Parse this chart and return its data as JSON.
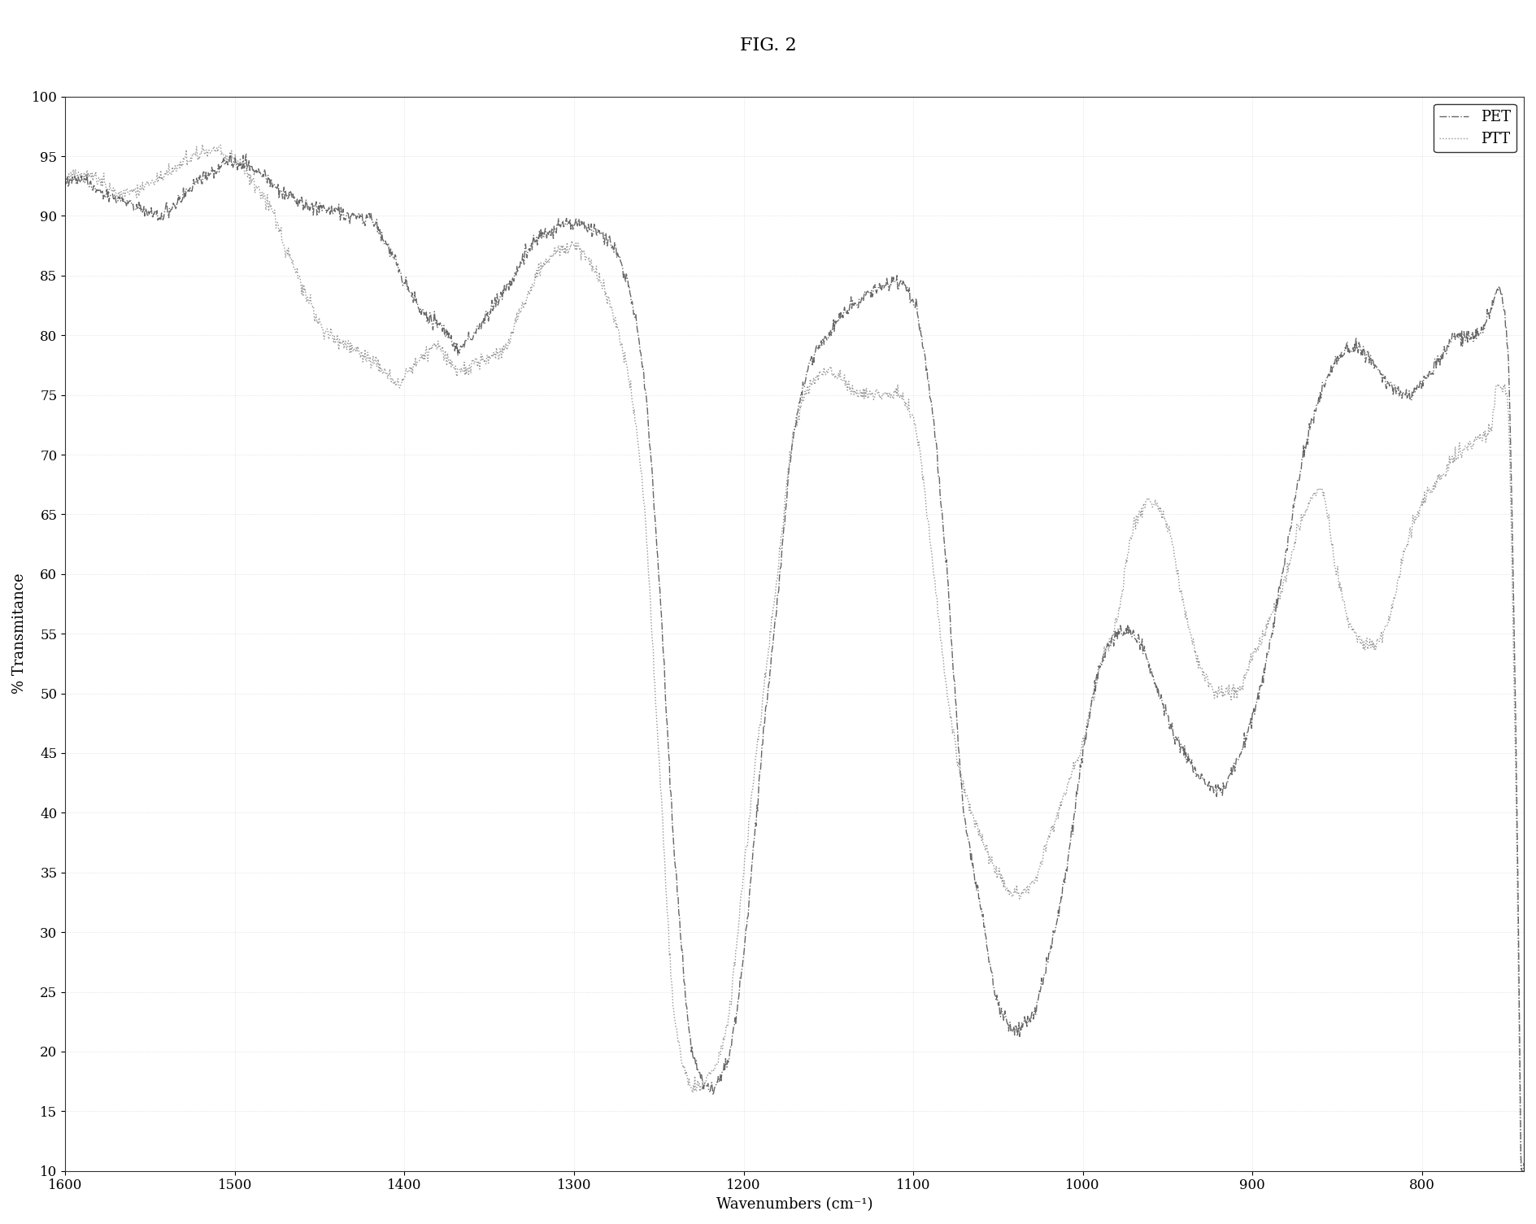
{
  "title": "FIG. 2",
  "xlabel": "Wavenumbers (cm⁻¹)",
  "ylabel": "% Transmitance",
  "xlim": [
    1600,
    740
  ],
  "ylim": [
    10,
    100
  ],
  "yticks": [
    10,
    15,
    20,
    25,
    30,
    35,
    40,
    45,
    50,
    55,
    60,
    65,
    70,
    75,
    80,
    85,
    90,
    95,
    100
  ],
  "xticks": [
    1600,
    1500,
    1400,
    1300,
    1200,
    1100,
    1000,
    900,
    800
  ],
  "legend_labels": [
    "PET",
    "PTT"
  ],
  "line_color_PET": "#555555",
  "line_color_PTT": "#888888",
  "background_color": "#ffffff",
  "title_fontsize": 16,
  "label_fontsize": 13,
  "tick_fontsize": 12
}
